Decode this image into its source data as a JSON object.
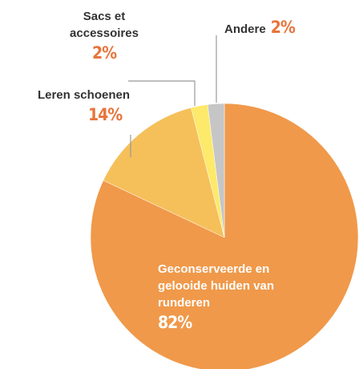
{
  "chart_data": {
    "type": "pie",
    "categories": [
      "Geconserveerde en gelooide huiden van runderen",
      "Leren schoenen",
      "Sacs et accessoires",
      "Andere"
    ],
    "values": [
      82,
      14,
      2,
      2
    ],
    "value_labels": [
      "82%",
      "14%",
      "2%",
      "2%"
    ],
    "colors": [
      "#f0994a",
      "#f5c05a",
      "#fde96a",
      "#c6c6c6"
    ]
  }
}
